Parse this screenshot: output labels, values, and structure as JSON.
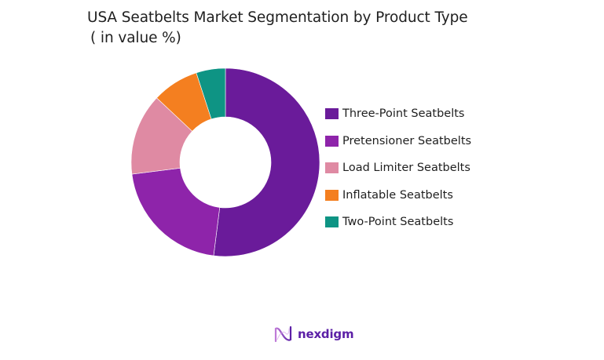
{
  "title": {
    "line1": "USA Seatbelts Market Segmentation by Product Type",
    "line2": "( in value %)"
  },
  "chart_data": {
    "type": "pie",
    "subtype": "donut",
    "title": "USA Seatbelts Market Segmentation by Product Type ( in value %)",
    "categories": [
      "Three-Point Seatbelts",
      "Pretensioner Seatbelts",
      "Load Limiter Seatbelts",
      "Inflatable Seatbelts",
      "Two-Point Seatbelts"
    ],
    "values": [
      52,
      21,
      14,
      8,
      5
    ],
    "colors": [
      "#6a1b9a",
      "#8e24aa",
      "#df8aa3",
      "#f47f20",
      "#0e9484"
    ],
    "start_angle_deg": 0,
    "direction": "clockwise",
    "legend_position": "right",
    "data_labels": false
  },
  "legend": [
    {
      "label": "Three-Point Seatbelts",
      "color": "#6a1b9a"
    },
    {
      "label": "Pretensioner Seatbelts",
      "color": "#8e24aa"
    },
    {
      "label": "Load Limiter Seatbelts",
      "color": "#df8aa3"
    },
    {
      "label": "Inflatable Seatbelts",
      "color": "#f47f20"
    },
    {
      "label": "Two-Point Seatbelts",
      "color": "#0e9484"
    }
  ],
  "logo": {
    "text": "nexdigm",
    "color": "#5b1fa6"
  }
}
